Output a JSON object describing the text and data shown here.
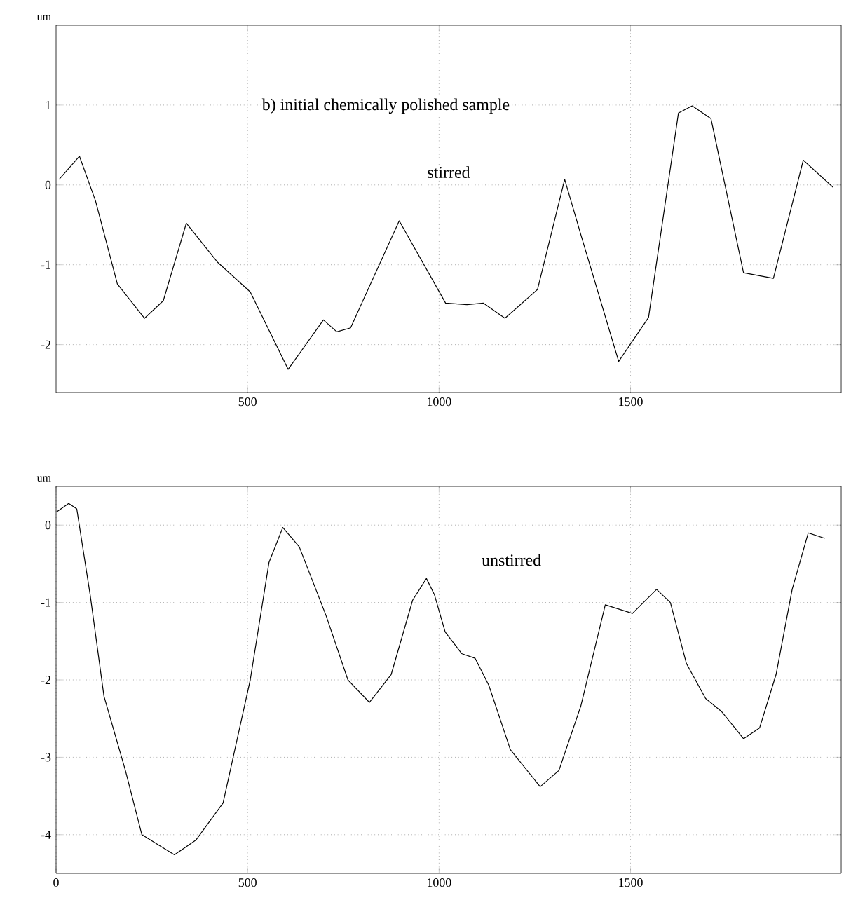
{
  "chart_data": [
    {
      "type": "line",
      "ylabel": "um",
      "color": "#000000",
      "grid": true,
      "annotations": [
        "b) initial chemically polished sample",
        "stirred"
      ],
      "xlim": [
        0,
        2050
      ],
      "ylim": [
        -2.6,
        2
      ],
      "xticks": [
        500,
        1000,
        1500
      ],
      "yticks": [
        -2,
        -1,
        0,
        1
      ],
      "x": [
        8,
        61,
        103,
        160,
        231,
        280,
        340,
        422,
        507,
        606,
        698,
        733,
        769,
        896,
        1017,
        1073,
        1116,
        1172,
        1257,
        1328,
        1370,
        1469,
        1547,
        1625,
        1661,
        1710,
        1795,
        1873,
        1951,
        2029
      ],
      "values": [
        0.07,
        0.36,
        -0.2,
        -1.24,
        -1.67,
        -1.45,
        -0.48,
        -0.97,
        -1.34,
        -2.31,
        -1.69,
        -1.84,
        -1.79,
        -0.45,
        -1.48,
        -1.5,
        -1.48,
        -1.67,
        -1.31,
        0.07,
        -0.62,
        -2.21,
        -1.66,
        0.9,
        0.99,
        0.83,
        -1.1,
        -1.17,
        0.31,
        -0.03
      ]
    },
    {
      "type": "line",
      "ylabel": "um",
      "color": "#000000",
      "grid": true,
      "annotations": [
        "unstirred"
      ],
      "xlim": [
        0,
        2050
      ],
      "ylim": [
        -4.5,
        0.5
      ],
      "xticks": [
        0,
        500,
        1000,
        1500
      ],
      "yticks": [
        -4,
        -3,
        -2,
        -1,
        0
      ],
      "x": [
        1,
        33,
        54,
        89,
        125,
        181,
        224,
        309,
        365,
        436,
        507,
        556,
        592,
        635,
        705,
        762,
        818,
        875,
        931,
        967,
        988,
        1016,
        1059,
        1094,
        1130,
        1186,
        1264,
        1313,
        1370,
        1434,
        1505,
        1568,
        1604,
        1646,
        1696,
        1738,
        1795,
        1837,
        1880,
        1922,
        1964,
        2007
      ],
      "values": [
        0.17,
        0.28,
        0.21,
        -0.9,
        -2.21,
        -3.17,
        -4.0,
        -4.26,
        -4.07,
        -3.59,
        -2.0,
        -0.48,
        -0.03,
        -0.28,
        -1.17,
        -2.0,
        -2.29,
        -1.93,
        -0.97,
        -0.69,
        -0.9,
        -1.38,
        -1.66,
        -1.72,
        -2.07,
        -2.9,
        -3.38,
        -3.17,
        -2.34,
        -1.03,
        -1.14,
        -0.83,
        -1.0,
        -1.79,
        -2.24,
        -2.41,
        -2.76,
        -2.62,
        -1.93,
        -0.83,
        -0.1,
        -0.17
      ]
    }
  ]
}
